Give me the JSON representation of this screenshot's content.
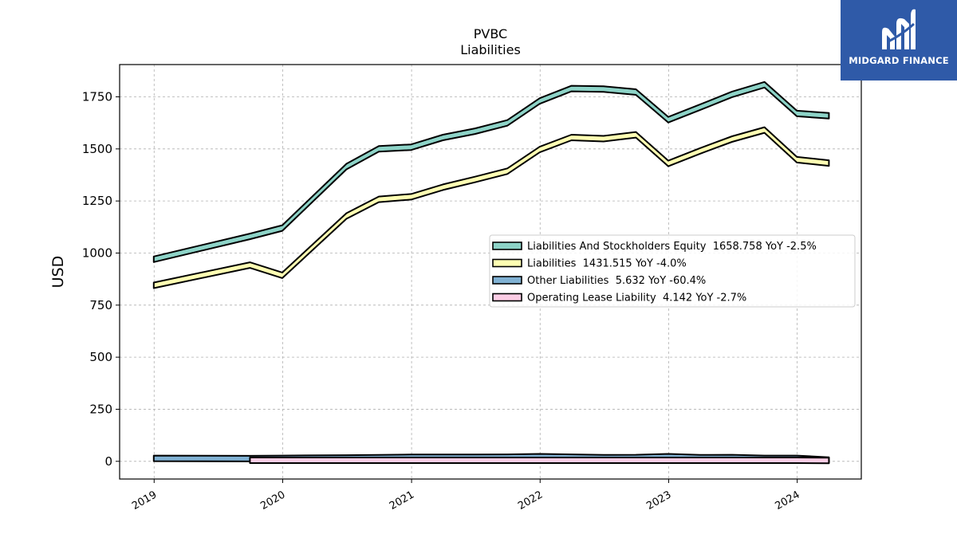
{
  "chart_data": {
    "type": "area",
    "title": "PVBC",
    "subtitle": "Liabilities",
    "ylabel": "USD",
    "xlabel": "",
    "x_ticks": [
      "2019",
      "2020",
      "2021",
      "2022",
      "2023",
      "2024"
    ],
    "y_ticks": [
      "0",
      "250",
      "500",
      "750",
      "1000",
      "1250",
      "1500",
      "1750"
    ],
    "ylim": [
      -85,
      1905
    ],
    "xlim": [
      "2018-09-25",
      "2024-07-01"
    ],
    "grid": true,
    "legend_position": "center-right",
    "series": [
      {
        "name": "Liabilities And Stockholders Equity",
        "legend": "Liabilities And Stockholders Equity  1658.758 YoY -2.5%",
        "color": "#8dd3c7",
        "x": [
          "2018-12-31",
          "2019-09-30",
          "2019-12-31",
          "2020-06-30",
          "2020-09-30",
          "2020-12-31",
          "2021-03-31",
          "2021-06-30",
          "2021-09-30",
          "2021-12-31",
          "2022-03-31",
          "2022-06-30",
          "2022-09-30",
          "2022-12-31",
          "2023-03-31",
          "2023-06-30",
          "2023-09-30",
          "2023-12-31",
          "2024-03-31"
        ],
        "values": [
          970,
          1080,
          1120,
          1415,
          1500,
          1508,
          1555,
          1585,
          1625,
          1730,
          1790,
          1787,
          1773,
          1640,
          1700,
          1762,
          1808,
          1670,
          1659
        ]
      },
      {
        "name": "Liabilities",
        "legend": "Liabilities  1431.515 YoY -4.0%",
        "color": "#ffffb3",
        "x": [
          "2018-12-31",
          "2019-09-30",
          "2019-12-31",
          "2020-06-30",
          "2020-09-30",
          "2020-12-31",
          "2021-03-31",
          "2021-06-30",
          "2021-09-30",
          "2021-12-31",
          "2022-03-31",
          "2022-06-30",
          "2022-09-30",
          "2022-12-31",
          "2023-03-31",
          "2023-06-30",
          "2023-09-30",
          "2023-12-31",
          "2024-03-31"
        ],
        "values": [
          845,
          942,
          893,
          1178,
          1258,
          1270,
          1316,
          1353,
          1393,
          1497,
          1555,
          1549,
          1568,
          1430,
          1490,
          1547,
          1591,
          1448,
          1432
        ]
      },
      {
        "name": "Other Liabilities",
        "legend": "Other Liabilities  5.632 YoY -60.4%",
        "color": "#80b1d3",
        "x": [
          "2018-12-31",
          "2019-09-30",
          "2019-12-31",
          "2020-06-30",
          "2020-09-30",
          "2020-12-31",
          "2021-03-31",
          "2021-06-30",
          "2021-09-30",
          "2021-12-31",
          "2022-03-31",
          "2022-06-30",
          "2022-09-30",
          "2022-12-31",
          "2023-03-31",
          "2023-06-30",
          "2023-09-30",
          "2023-12-31",
          "2024-03-31"
        ],
        "values": [
          14,
          13,
          14,
          16,
          17,
          19,
          19,
          19,
          20,
          22,
          20,
          17,
          18,
          22,
          17,
          18,
          14,
          14,
          6
        ]
      },
      {
        "name": "Operating Lease Liability",
        "legend": "Operating Lease Liability  4.142 YoY -2.7%",
        "color": "#fccde5",
        "x": [
          "2019-09-30",
          "2019-12-31",
          "2020-06-30",
          "2020-09-30",
          "2020-12-31",
          "2021-03-31",
          "2021-06-30",
          "2021-09-30",
          "2021-12-31",
          "2022-03-31",
          "2022-06-30",
          "2022-09-30",
          "2022-12-31",
          "2023-03-31",
          "2023-06-30",
          "2023-09-30",
          "2023-12-31",
          "2024-03-31"
        ],
        "values": [
          5,
          5,
          5,
          5,
          5,
          5,
          5,
          5,
          5,
          5,
          5,
          5,
          5,
          5,
          5,
          5,
          5,
          4
        ]
      }
    ]
  },
  "logo": {
    "text": "MIDGARD FINANCE",
    "background": "#2f5aa8"
  }
}
